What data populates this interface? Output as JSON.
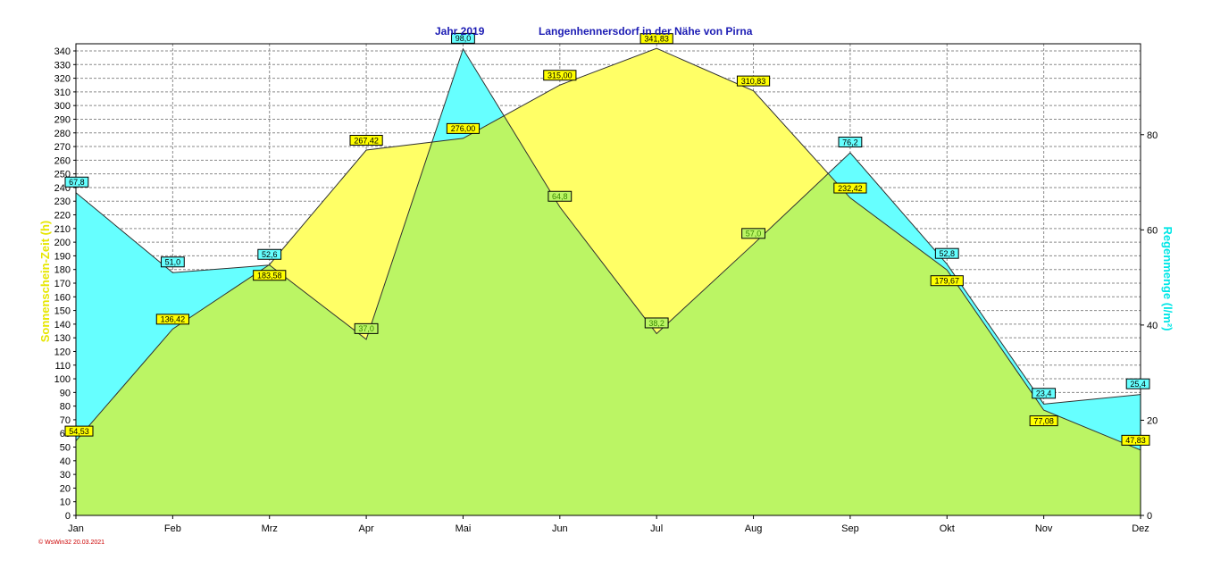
{
  "chart_data": {
    "type": "area",
    "title": "Jahr  2019",
    "subtitle": "Langenhennersdorf in der Nähe von Pirna",
    "categories": [
      "Jan",
      "Feb",
      "Mrz",
      "Apr",
      "Mai",
      "Jun",
      "Jul",
      "Aug",
      "Sep",
      "Okt",
      "Nov",
      "Dez"
    ],
    "y_left": {
      "label": "Sonnenschein-Zeit  (h)",
      "min": 0,
      "max": 340,
      "step": 10
    },
    "y_right": {
      "label": "Regenmenge  (l/m²)",
      "min": 0,
      "max": 97.6,
      "ticks": [
        0,
        20,
        40,
        60,
        80
      ]
    },
    "series": [
      {
        "name": "Sonnenschein-Zeit",
        "axis": "left",
        "color": "#ffff66",
        "values": [
          54.53,
          136.42,
          183.58,
          267.42,
          276.0,
          315.0,
          341.83,
          310.83,
          232.42,
          179.67,
          77.08,
          47.83
        ],
        "labels": [
          "54,53",
          "136,42",
          "183,58",
          "267,42",
          "276,00",
          "315,00",
          "341,83",
          "310,83",
          "232,42",
          "179,67",
          "77,08",
          "47,83"
        ]
      },
      {
        "name": "Regenmenge",
        "axis": "right",
        "color": "#66ffff",
        "values": [
          67.8,
          51.0,
          52.6,
          37.0,
          98.0,
          64.8,
          38.2,
          57.0,
          76.2,
          52.8,
          23.4,
          25.4
        ],
        "labels": [
          "67,8",
          "51,0",
          "52,6",
          "37,0",
          "98,0",
          "64,8",
          "38,2",
          "57,0",
          "76,2",
          "52,8",
          "23,4",
          "25,4"
        ]
      }
    ],
    "overlap_color": "#bbf564",
    "grid": true,
    "legend": "none"
  },
  "credit": "© WsWin32  20.03.2021"
}
